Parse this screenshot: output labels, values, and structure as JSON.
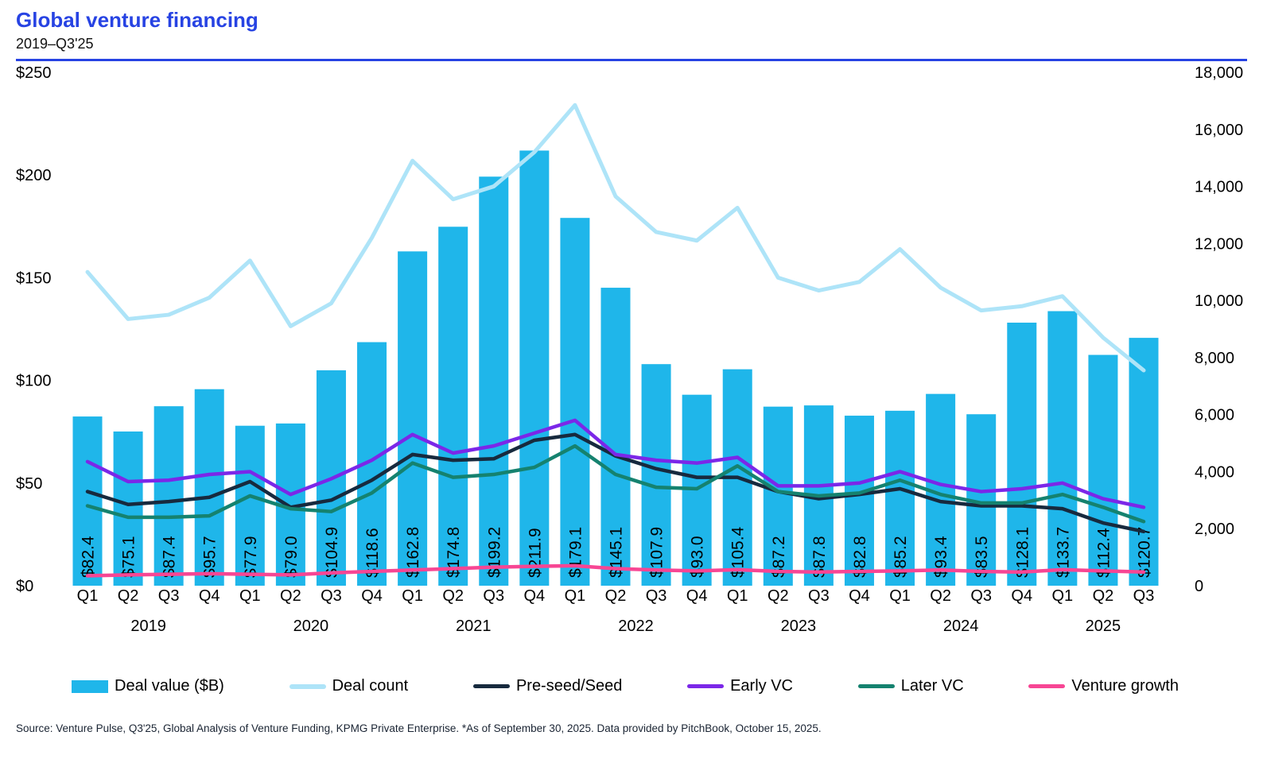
{
  "header": {
    "title": "Global venture financing",
    "subtitle": "2019–Q3'25",
    "accent_color": "#2743E3"
  },
  "footer": {
    "source": "Source: Venture Pulse, Q3'25, Global Analysis of Venture Funding, KPMG Private Enterprise. *As of September 30, 2025. Data provided by PitchBook, October 15, 2025."
  },
  "chart_data": {
    "type": "combo-bar-line",
    "title": "Global venture financing",
    "subtitle": "2019–Q3'25",
    "grid": false,
    "legend_position": "bottom",
    "quarters": [
      "Q1",
      "Q2",
      "Q3",
      "Q4",
      "Q1",
      "Q2",
      "Q3",
      "Q4",
      "Q1",
      "Q2",
      "Q3",
      "Q4",
      "Q1",
      "Q2",
      "Q3",
      "Q4",
      "Q1",
      "Q2",
      "Q3",
      "Q4",
      "Q1",
      "Q2",
      "Q3",
      "Q4",
      "Q1",
      "Q2",
      "Q3"
    ],
    "year_groups": [
      {
        "label": "2019",
        "start_index": 0,
        "quarters": 4
      },
      {
        "label": "2020",
        "start_index": 4,
        "quarters": 4
      },
      {
        "label": "2021",
        "start_index": 8,
        "quarters": 4
      },
      {
        "label": "2022",
        "start_index": 12,
        "quarters": 4
      },
      {
        "label": "2023",
        "start_index": 16,
        "quarters": 4
      },
      {
        "label": "2024",
        "start_index": 20,
        "quarters": 4
      },
      {
        "label": "2025",
        "start_index": 24,
        "quarters": 3
      }
    ],
    "left_axis": {
      "min": 0,
      "max": 250,
      "tick_values": [
        250,
        200,
        150,
        100,
        50,
        0
      ],
      "tick_labels": [
        "$250",
        "$200",
        "$150",
        "$100",
        "$50",
        "$0"
      ]
    },
    "right_axis": {
      "min": 0,
      "max": 18000,
      "tick_values": [
        18000,
        16000,
        14000,
        12000,
        10000,
        8000,
        6000,
        4000,
        2000,
        0
      ],
      "tick_labels": [
        "18,000",
        "16,000",
        "14,000",
        "12,000",
        "10,000",
        "8,000",
        "6,000",
        "4,000",
        "2,000",
        "0"
      ]
    },
    "bar_series": {
      "name": "Deal value ($B)",
      "color": "#1FB6EA",
      "axis": "left",
      "values": [
        82.4,
        75.1,
        87.4,
        95.7,
        77.9,
        79.0,
        104.9,
        118.6,
        162.8,
        174.8,
        199.2,
        211.9,
        179.1,
        145.1,
        107.9,
        93.0,
        105.4,
        87.2,
        87.8,
        82.8,
        85.2,
        93.4,
        83.5,
        128.1,
        133.7,
        112.4,
        120.7
      ],
      "labels": [
        "$82.4",
        "$75.1",
        "$87.4",
        "$95.7",
        "$77.9",
        "$79.0",
        "$104.9",
        "$118.6",
        "$162.8",
        "$174.8",
        "$199.2",
        "$211.9",
        "$179.1",
        "$145.1",
        "$107.9",
        "$93.0",
        "$105.4",
        "$87.2",
        "$87.8",
        "$82.8",
        "$85.2",
        "$93.4",
        "$83.5",
        "$128.1",
        "$133.7",
        "$112.4",
        "$120.7"
      ]
    },
    "line_series": [
      {
        "name": "Deal count",
        "color": "#AEE4F8",
        "axis": "right",
        "values": [
          11000,
          9350,
          9500,
          10100,
          11400,
          9100,
          9900,
          12200,
          14900,
          13550,
          14000,
          15200,
          16850,
          13650,
          12400,
          12100,
          13250,
          10800,
          10350,
          10650,
          11800,
          10450,
          9650,
          9800,
          10150,
          8700,
          7550
        ]
      },
      {
        "name": "Pre-seed/Seed",
        "color": "#172A3E",
        "axis": "right",
        "values": [
          3300,
          2850,
          2950,
          3100,
          3650,
          2750,
          3000,
          3700,
          4600,
          4400,
          4450,
          5100,
          5300,
          4550,
          4100,
          3800,
          3800,
          3300,
          3050,
          3200,
          3400,
          2950,
          2800,
          2800,
          2700,
          2200,
          1900
        ]
      },
      {
        "name": "Early VC",
        "color": "#7B27E8",
        "axis": "right",
        "values": [
          4350,
          3650,
          3700,
          3900,
          4000,
          3200,
          3750,
          4400,
          5300,
          4650,
          4900,
          5350,
          5800,
          4600,
          4400,
          4300,
          4500,
          3500,
          3500,
          3600,
          4000,
          3550,
          3300,
          3400,
          3600,
          3050,
          2750
        ]
      },
      {
        "name": "Later VC",
        "color": "#15826F",
        "axis": "right",
        "values": [
          2800,
          2400,
          2400,
          2450,
          3150,
          2700,
          2600,
          3250,
          4300,
          3800,
          3900,
          4150,
          4900,
          3900,
          3450,
          3400,
          4200,
          3300,
          3150,
          3250,
          3700,
          3200,
          2900,
          2900,
          3200,
          2750,
          2250
        ]
      },
      {
        "name": "Venture growth",
        "color": "#F74694",
        "axis": "right",
        "values": [
          350,
          380,
          400,
          420,
          400,
          380,
          450,
          500,
          550,
          600,
          650,
          680,
          700,
          600,
          550,
          520,
          560,
          500,
          480,
          500,
          520,
          550,
          500,
          480,
          560,
          520,
          480
        ]
      }
    ],
    "legend": [
      "Deal value ($B)",
      "Deal count",
      "Pre-seed/Seed",
      "Early VC",
      "Later VC",
      "Venture growth"
    ]
  }
}
